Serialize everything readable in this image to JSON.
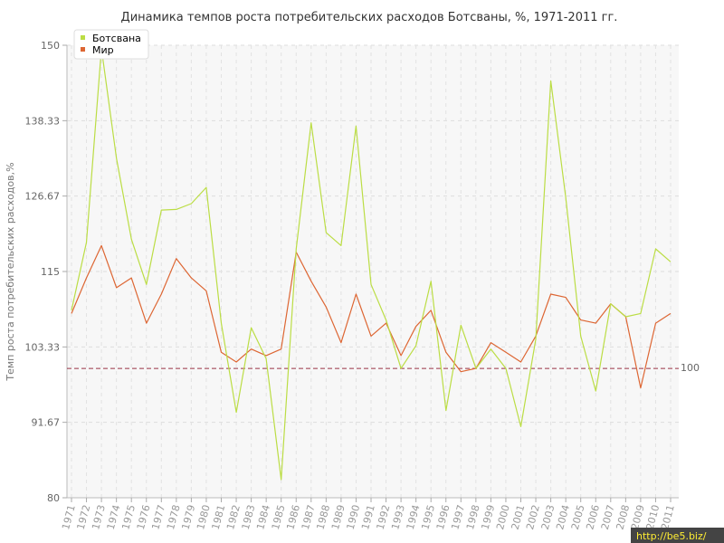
{
  "chart_data": {
    "type": "line",
    "title": "Динамика темпов роста потребительских расходов Ботсваны, %, 1971-2011 гг.",
    "xlabel": "",
    "ylabel": "Темп роста потребительских расходов,%",
    "ylim": [
      80,
      150
    ],
    "y_ticks": [
      "80",
      "91.67",
      "103.33",
      "115",
      "126.67",
      "138.33",
      "150"
    ],
    "x": [
      "1971",
      "1972",
      "1973",
      "1974",
      "1975",
      "1976",
      "1977",
      "1978",
      "1979",
      "1980",
      "1981",
      "1982",
      "1983",
      "1984",
      "1985",
      "1986",
      "1987",
      "1988",
      "1989",
      "1990",
      "1991",
      "1992",
      "1993",
      "1994",
      "1995",
      "1996",
      "1997",
      "1998",
      "1999",
      "2000",
      "2001",
      "2002",
      "2003",
      "2004",
      "2005",
      "2006",
      "2007",
      "2008",
      "2009",
      "2010",
      "2011"
    ],
    "series": [
      {
        "name": "Ботсвана",
        "color": "#bbdd44",
        "values": [
          109.0,
          119.5,
          149.5,
          132.5,
          120.0,
          113.0,
          124.5,
          124.6,
          125.5,
          128.0,
          107.0,
          93.2,
          106.3,
          101.5,
          82.8,
          118.5,
          138.0,
          121.0,
          119.0,
          137.5,
          113.0,
          107.5,
          100.0,
          103.5,
          113.5,
          93.5,
          106.7,
          100.0,
          103.0,
          100.0,
          91.0,
          104.5,
          144.5,
          126.5,
          105.0,
          96.5,
          110.0,
          108.0,
          108.5,
          118.5,
          116.5
        ]
      },
      {
        "name": "Мир",
        "color": "#dd6633",
        "values": [
          108.5,
          114.0,
          119.0,
          112.5,
          114.0,
          107.0,
          111.5,
          117.0,
          114.0,
          112.0,
          102.5,
          101.0,
          103.0,
          102.0,
          103.0,
          118.0,
          113.5,
          109.5,
          104.0,
          111.5,
          105.0,
          107.0,
          102.0,
          106.5,
          109.0,
          102.5,
          99.5,
          100.0,
          104.0,
          102.5,
          101.0,
          105.0,
          111.5,
          111.0,
          107.5,
          107.0,
          110.0,
          108.0,
          97.0,
          107.0,
          108.5
        ]
      }
    ],
    "reference_line": {
      "value": 100,
      "label": "100",
      "color": "#993344"
    },
    "grid": true,
    "legend": "top-left"
  },
  "watermark": "http://be5.biz/"
}
